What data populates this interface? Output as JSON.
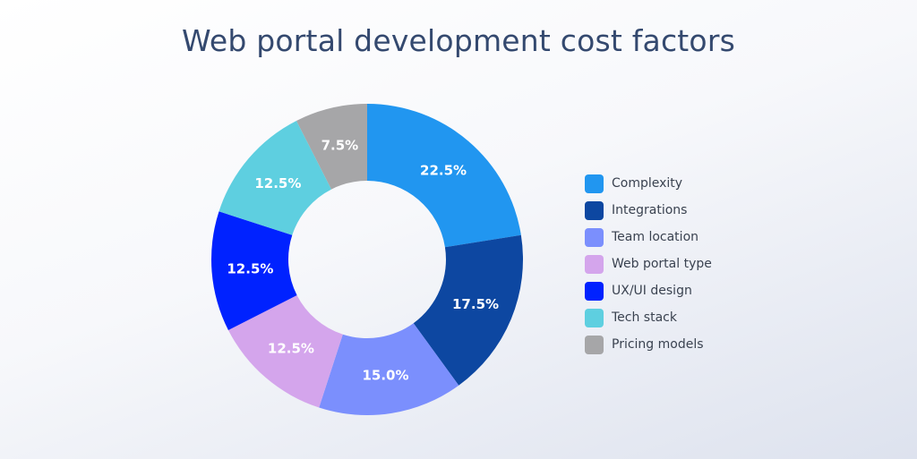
{
  "chart_data": {
    "type": "pie",
    "title": "Web portal development cost factors",
    "donut": true,
    "start": "top, clockwise",
    "legend_position": "right",
    "slices": [
      {
        "label": "Complexity",
        "value": 22.5,
        "display": "22.5%",
        "color": "#2196f0"
      },
      {
        "label": "Integrations",
        "value": 17.5,
        "display": "17.5%",
        "color": "#0d47a1"
      },
      {
        "label": "Team location",
        "value": 15.0,
        "display": "15.0%",
        "color": "#7b8ffd"
      },
      {
        "label": "Web portal type",
        "value": 12.5,
        "display": "12.5%",
        "color": "#d4a5ec"
      },
      {
        "label": "UX/UI design",
        "value": 12.5,
        "display": "12.5%",
        "color": "#0022ff"
      },
      {
        "label": "Tech stack",
        "value": 12.5,
        "display": "12.5%",
        "color": "#5ecfe0"
      },
      {
        "label": "Pricing models",
        "value": 7.5,
        "display": "7.5%",
        "color": "#a6a6a8"
      }
    ]
  }
}
